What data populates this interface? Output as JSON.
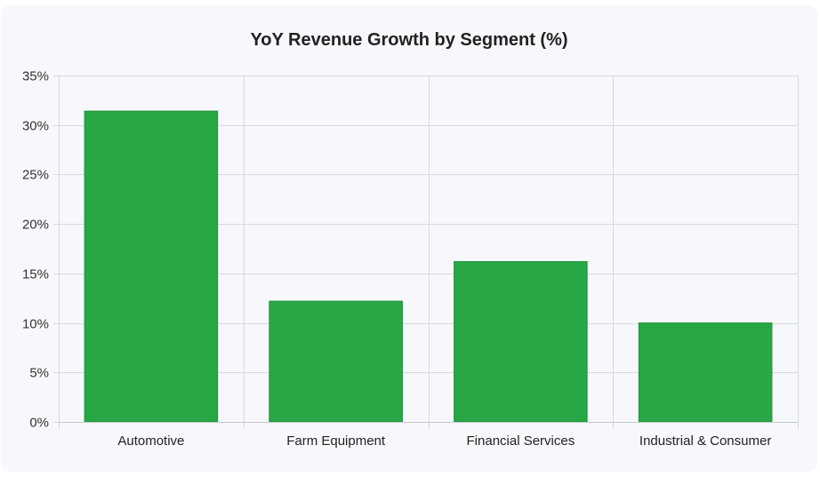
{
  "chart_data": {
    "type": "bar",
    "title": "YoY Revenue Growth by Segment (%)",
    "xlabel": "",
    "ylabel": "",
    "categories": [
      "Automotive",
      "Farm Equipment",
      "Financial Services",
      "Industrial & Consumer"
    ],
    "values": [
      31.4,
      12.2,
      16.2,
      10.0
    ],
    "ylim": [
      0,
      35
    ],
    "yticks": [
      0,
      5,
      10,
      15,
      20,
      25,
      30,
      35
    ],
    "ytick_format": "{v}%",
    "grid": true,
    "legend": "none",
    "colors": {
      "bar": "#28a745",
      "bar_border": "#22913c",
      "grid": "#d6d9de",
      "axis": "#c3c7cc"
    }
  }
}
